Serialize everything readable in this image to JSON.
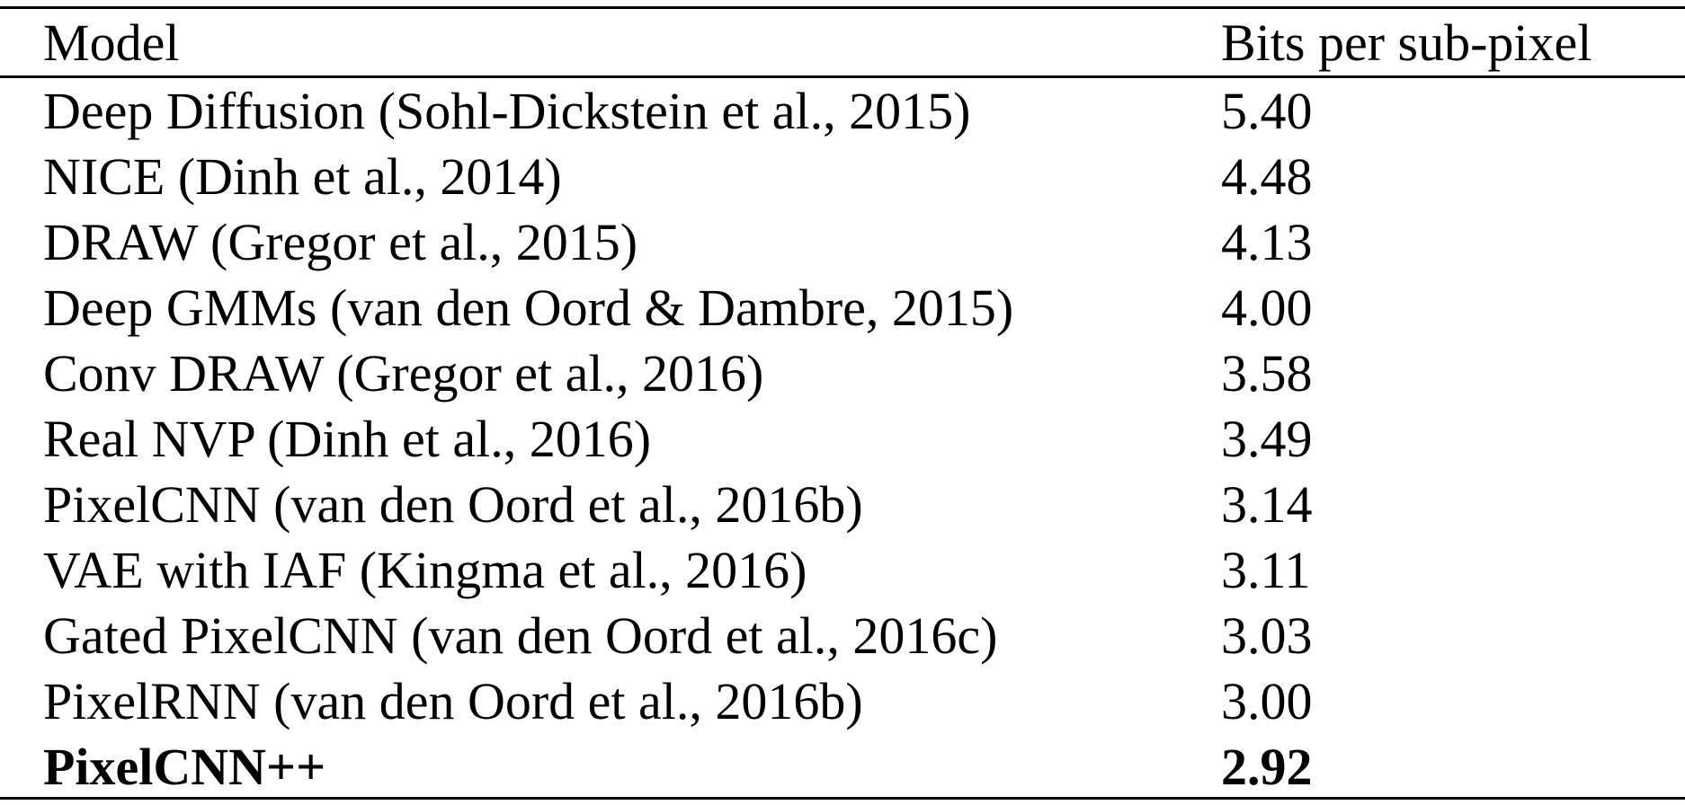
{
  "table": {
    "headers": {
      "model": "Model",
      "bits": "Bits per sub-pixel"
    },
    "rows": [
      {
        "model": "Deep Diffusion (Sohl-Dickstein et al., 2015)",
        "bits": "5.40"
      },
      {
        "model": "NICE (Dinh et al., 2014)",
        "bits": "4.48"
      },
      {
        "model": "DRAW (Gregor et al., 2015)",
        "bits": "4.13"
      },
      {
        "model": "Deep GMMs (van den Oord & Dambre, 2015)",
        "bits": "4.00"
      },
      {
        "model": "Conv DRAW (Gregor et al., 2016)",
        "bits": "3.58"
      },
      {
        "model": "Real NVP (Dinh et al., 2016)",
        "bits": "3.49"
      },
      {
        "model": "PixelCNN (van den Oord et al., 2016b)",
        "bits": "3.14"
      },
      {
        "model": "VAE with IAF (Kingma et al., 2016)",
        "bits": "3.11"
      },
      {
        "model": "Gated PixelCNN (van den Oord et al., 2016c)",
        "bits": "3.03"
      },
      {
        "model": "PixelRNN (van den Oord et al., 2016b)",
        "bits": "3.00"
      },
      {
        "model": "PixelCNN++",
        "bits": "2.92",
        "bold": true
      }
    ]
  }
}
